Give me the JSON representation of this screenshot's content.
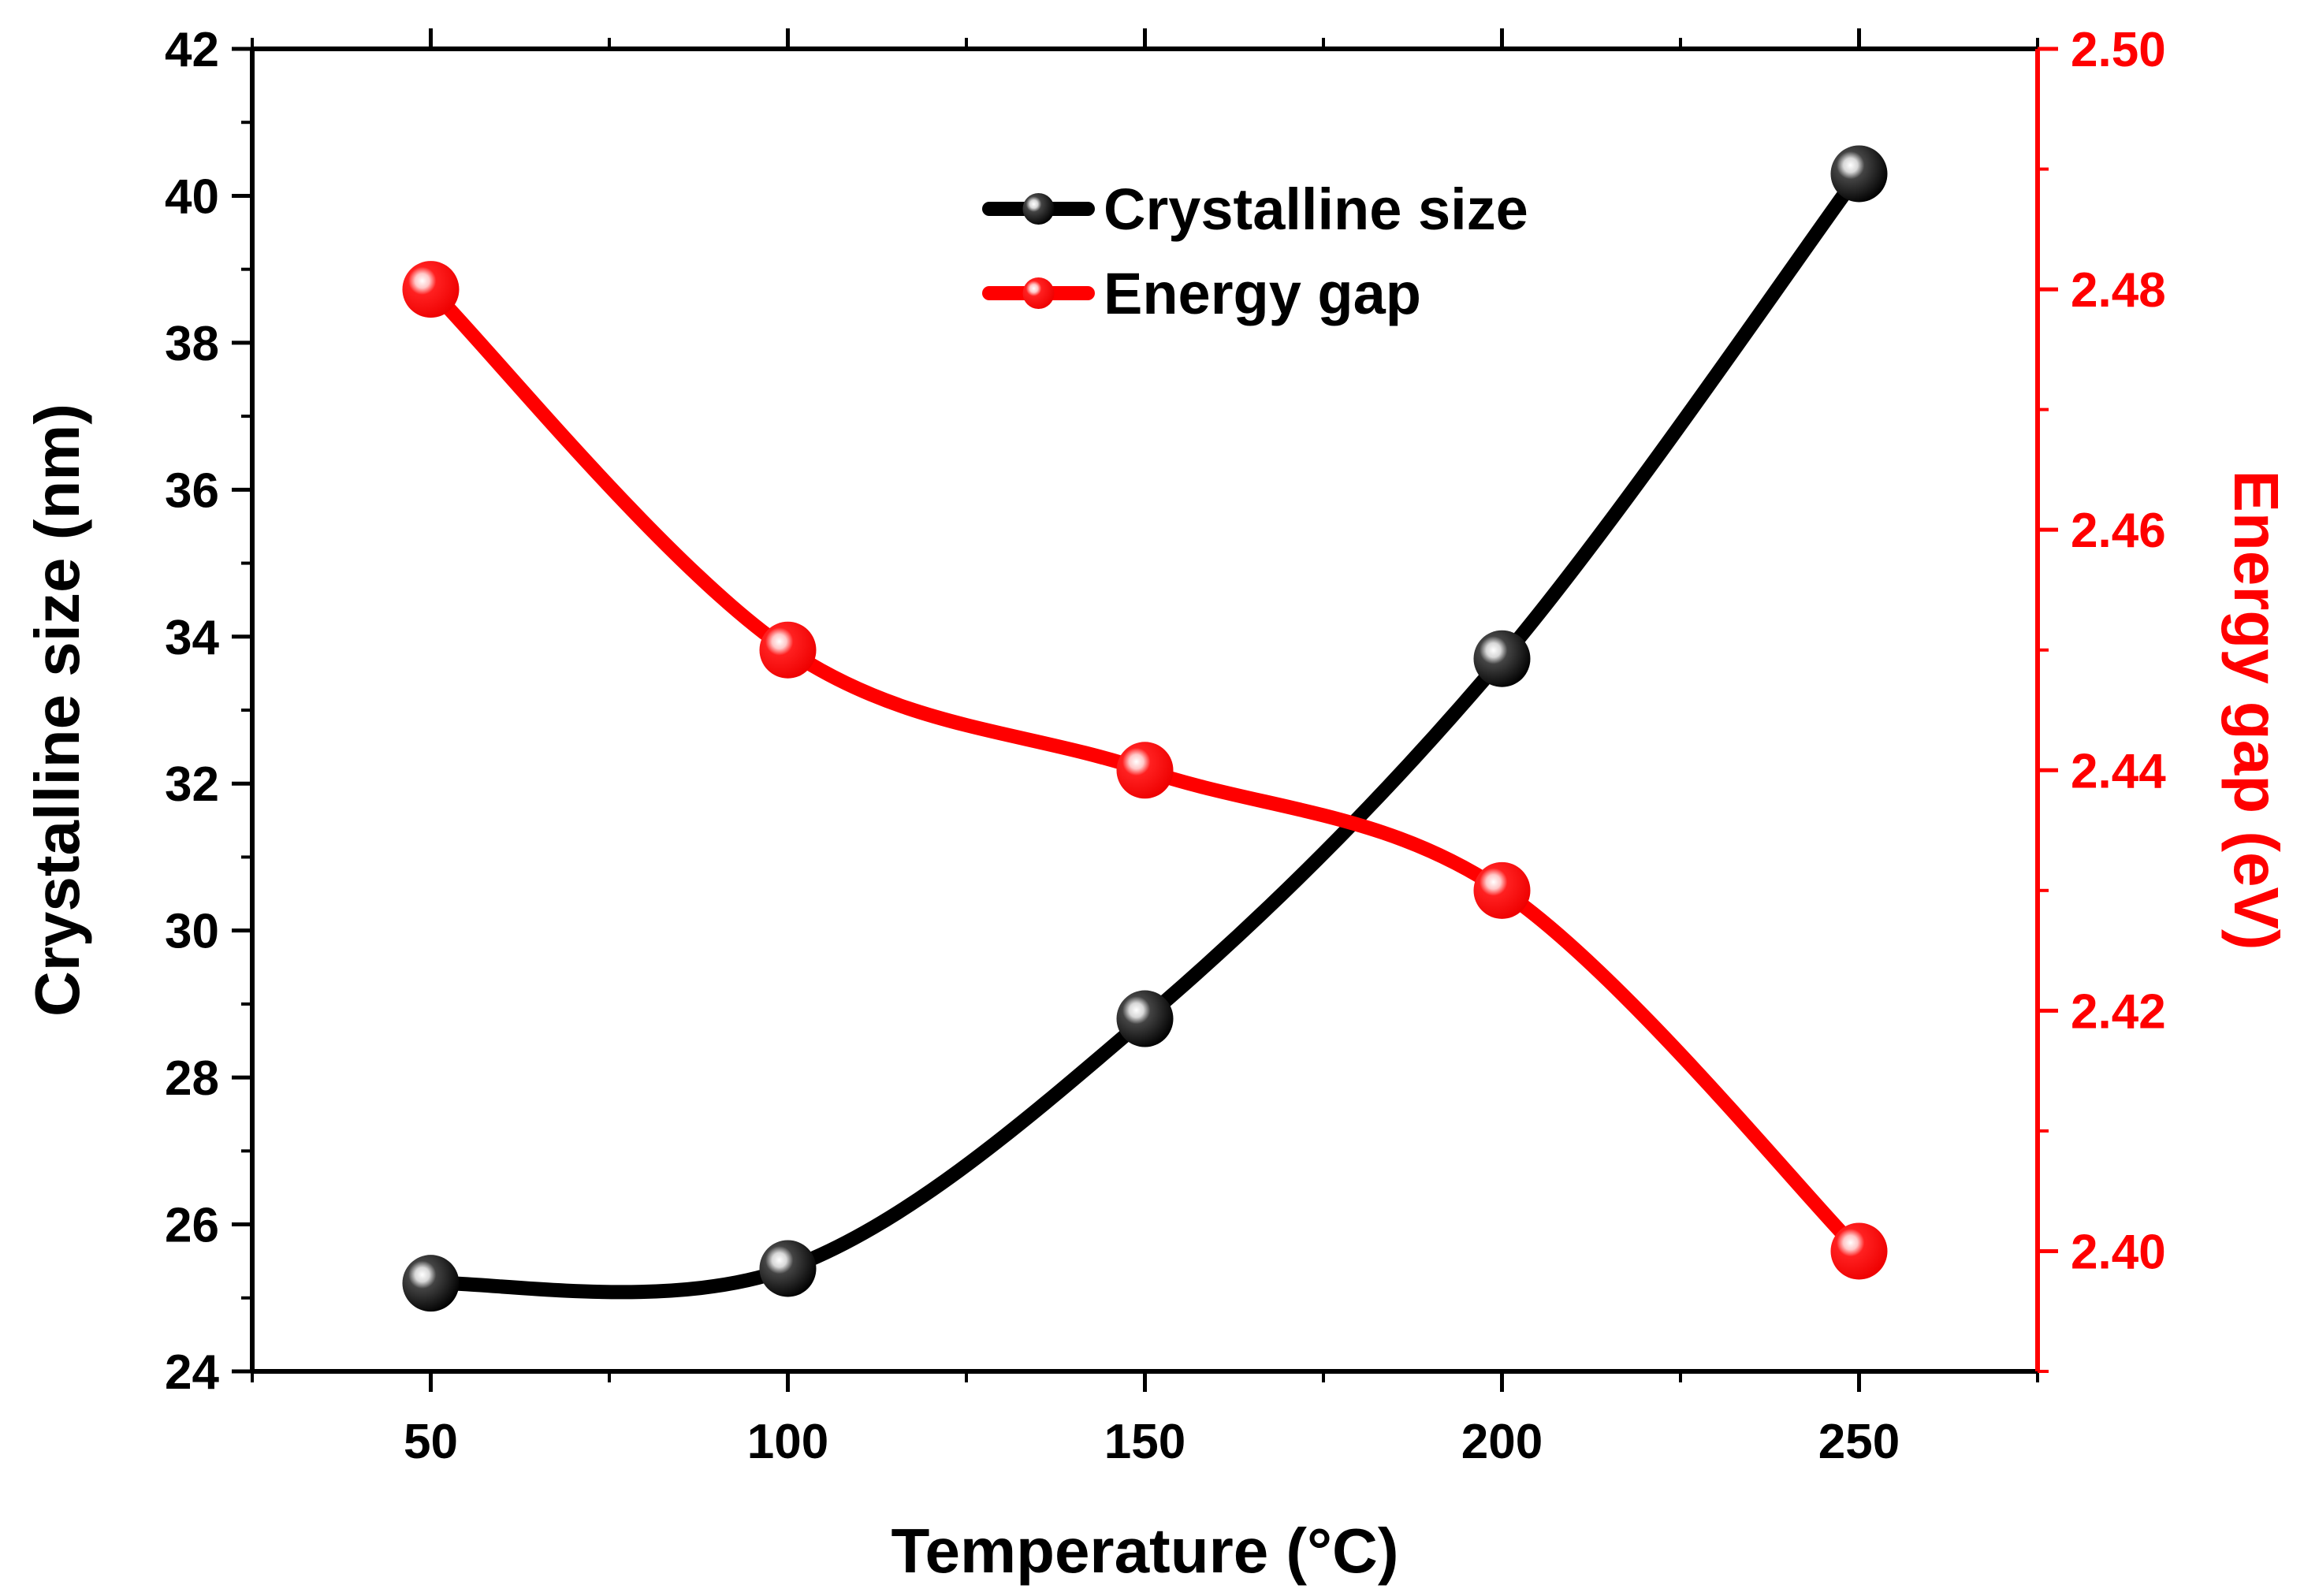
{
  "chart_data": {
    "type": "line",
    "xlabel": "Temperature (°C)",
    "ylabel_left": "Crystalline size (nm)",
    "ylabel_right": "Energy gap (eV)",
    "xlim": [
      25,
      275
    ],
    "ylim_left": [
      24,
      42
    ],
    "ylim_right": [
      2.39,
      2.5
    ],
    "x_ticks": [
      "50",
      "100",
      "150",
      "200",
      "250"
    ],
    "y_left_ticks": [
      "24",
      "26",
      "28",
      "30",
      "32",
      "34",
      "36",
      "38",
      "40",
      "42"
    ],
    "y_right_ticks": [
      "2.40",
      "2.42",
      "2.44",
      "2.46",
      "2.48",
      "2.50"
    ],
    "legend_position": "top-center",
    "series": [
      {
        "name": "Crystalline size",
        "axis": "left",
        "color": "#000000",
        "x": [
          50,
          100,
          150,
          200,
          250
        ],
        "values": [
          25.2,
          25.4,
          28.8,
          33.7,
          40.3
        ]
      },
      {
        "name": "Energy gap",
        "axis": "right",
        "color": "#ff0000",
        "x": [
          50,
          100,
          150,
          200,
          250
        ],
        "values": [
          2.48,
          2.45,
          2.44,
          2.43,
          2.4
        ]
      }
    ]
  }
}
